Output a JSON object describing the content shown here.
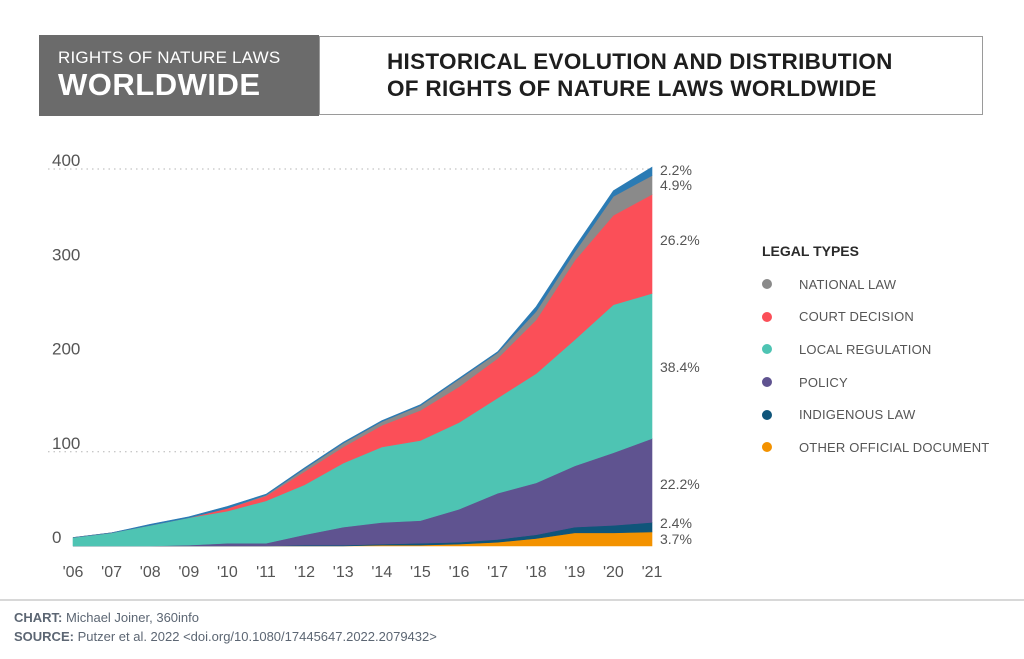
{
  "header": {
    "left_line1": "RIGHTS OF NATURE LAWS",
    "left_line2": "WORLDWIDE",
    "title_line1": "HISTORICAL EVOLUTION AND DISTRIBUTION",
    "title_line2": "OF RIGHTS OF NATURE LAWS WORLDWIDE"
  },
  "legend": {
    "title": "LEGAL TYPES",
    "items": [
      {
        "label": "NATIONAL LAW",
        "color": "#8a8a8a"
      },
      {
        "label": "COURT DECISION",
        "color": "#fb4f58"
      },
      {
        "label": "LOCAL REGULATION",
        "color": "#4ec4b3"
      },
      {
        "label": "POLICY",
        "color": "#5f5390"
      },
      {
        "label": "INDIGENOUS LAW",
        "color": "#0f557a"
      },
      {
        "label": "OTHER OFFICIAL DOCUMENT",
        "color": "#f39200"
      }
    ]
  },
  "footer": {
    "chart_label": "CHART:",
    "chart_value": "Michael Joiner, 360info",
    "source_label": "SOURCE:",
    "source_value": "Putzer et al. 2022 <doi.org/10.1080/17445647.2022.2079432>"
  },
  "chart_data": {
    "type": "area",
    "stacked": true,
    "title": "Historical evolution and distribution of Rights of Nature laws worldwide",
    "xlabel": "",
    "ylabel": "",
    "categories": [
      "'06",
      "'07",
      "'08",
      "'09",
      "'10",
      "'11",
      "'12",
      "'13",
      "'14",
      "'15",
      "'16",
      "'17",
      "'18",
      "'19",
      "'20",
      "'21"
    ],
    "yticks": [
      0,
      100,
      200,
      300,
      400
    ],
    "ylim": [
      0,
      400
    ],
    "gridlines": [
      100,
      400
    ],
    "legend_position": "right",
    "series": [
      {
        "name": "OTHER OFFICIAL DOCUMENT",
        "color": "#f39200",
        "share_2021": "3.7%",
        "values": [
          0,
          0,
          0,
          0,
          0,
          0,
          0,
          0,
          1,
          1,
          2,
          4,
          8,
          14,
          14,
          15
        ]
      },
      {
        "name": "INDIGENOUS LAW",
        "color": "#0f557a",
        "share_2021": "2.4%",
        "values": [
          0,
          0,
          0,
          0,
          0,
          0,
          1,
          1,
          1,
          2,
          2,
          3,
          4,
          6,
          8,
          10
        ]
      },
      {
        "name": "POLICY",
        "color": "#5f5390",
        "share_2021": "22.2%",
        "values": [
          0,
          0,
          0,
          1,
          3,
          3,
          11,
          19,
          23,
          24,
          35,
          49,
          55,
          65,
          77,
          89
        ]
      },
      {
        "name": "LOCAL REGULATION",
        "color": "#4ec4b3",
        "share_2021": "38.4%",
        "values": [
          9,
          14,
          22,
          29,
          34,
          45,
          53,
          68,
          80,
          85,
          92,
          101,
          116,
          134,
          157,
          154
        ]
      },
      {
        "name": "COURT DECISION",
        "color": "#fb4f58",
        "share_2021": "26.2%",
        "values": [
          0,
          0,
          0,
          0,
          3,
          5,
          14,
          17,
          23,
          32,
          38,
          42,
          57,
          84,
          95,
          105
        ]
      },
      {
        "name": "NATIONAL LAW",
        "color": "#8a8a8a",
        "share_2021": "4.9%",
        "values": [
          0,
          0,
          0,
          0,
          0,
          1,
          3,
          4,
          4,
          5,
          8,
          6,
          9,
          9,
          20,
          20
        ]
      },
      {
        "name": "",
        "color": "#2b7bb4",
        "share_2021": "2.2%",
        "values": [
          0,
          0,
          1,
          1,
          2,
          1,
          1,
          1,
          1,
          1,
          1,
          1,
          5,
          5,
          6,
          9
        ]
      }
    ],
    "end_labels": [
      "2.2%",
      "4.9%",
      "26.2%",
      "38.4%",
      "22.2%",
      "2.4%",
      "3.7%"
    ]
  }
}
